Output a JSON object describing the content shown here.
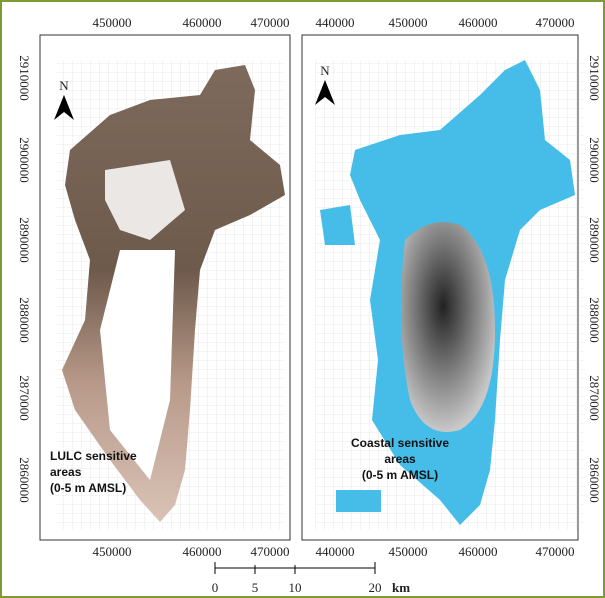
{
  "panels": [
    {
      "x_labels_top": [
        "450000",
        "460000",
        "470000"
      ],
      "x_labels_bottom": [
        "450000",
        "460000",
        "470000"
      ],
      "y_labels": [
        "2910000",
        "2900000",
        "2890000",
        "2880000",
        "2870000",
        "2860000"
      ],
      "north": "N",
      "legend_lines": [
        "LULC sensitive",
        "areas",
        "(0-5 m AMSL)"
      ]
    },
    {
      "x_labels_top": [
        "440000",
        "450000",
        "460000",
        "470000"
      ],
      "x_labels_bottom": [
        "440000",
        "450000",
        "460000",
        "470000"
      ],
      "y_labels": [
        "2910000",
        "2900000",
        "2890000",
        "2880000",
        "2870000",
        "2860000"
      ],
      "north": "N",
      "legend_lines": [
        "Coastal sensitive",
        "areas",
        "(0-5 m AMSL)"
      ]
    }
  ],
  "scale_bar": {
    "labels": [
      "0",
      "5",
      "10",
      "20"
    ],
    "unit": "km"
  }
}
